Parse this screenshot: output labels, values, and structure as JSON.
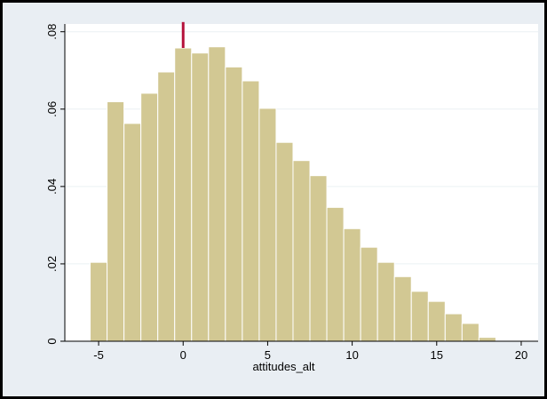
{
  "chart_data": {
    "type": "bar",
    "title": "",
    "xlabel": "attitudes_alt",
    "ylabel": "",
    "xlim": [
      -7,
      21
    ],
    "ylim": [
      0,
      0.082
    ],
    "grid": true,
    "legend": "none",
    "xticks": [
      -5,
      0,
      5,
      10,
      15,
      20
    ],
    "xtick_labels": [
      "-5",
      "0",
      "5",
      "10",
      "15",
      "20"
    ],
    "yticks": [
      0,
      0.02,
      0.04,
      0.06,
      0.08
    ],
    "ytick_labels": [
      "0",
      ".02",
      ".04",
      ".06",
      ".08"
    ],
    "bin_width": 1,
    "bin_starts": [
      -5.5,
      -4.5,
      -3.5,
      -2.5,
      -1.5,
      -0.5,
      0.5,
      1.5,
      2.5,
      3.5,
      4.5,
      5.5,
      6.5,
      7.5,
      8.5,
      9.5,
      10.5,
      11.5,
      12.5,
      13.5,
      14.5,
      15.5,
      16.5,
      17.5
    ],
    "values": [
      0.0204,
      0.0619,
      0.0563,
      0.0641,
      0.0696,
      0.0758,
      0.0745,
      0.0761,
      0.0709,
      0.0673,
      0.0602,
      0.0514,
      0.0467,
      0.0428,
      0.0346,
      0.0291,
      0.0243,
      0.0204,
      0.0167,
      0.0129,
      0.0103,
      0.0071,
      0.0046,
      0.001
    ],
    "marker": {
      "x": 0,
      "y_from": 0.0758,
      "y_to": 0.0825
    },
    "colors": {
      "bar_fill": "#d2c893",
      "bar_edge": "#ffffff",
      "marker": "#b5123b",
      "plot_bg": "#ffffff",
      "outer_bg": "#e9eef3",
      "grid": "#eaf0f4"
    }
  }
}
